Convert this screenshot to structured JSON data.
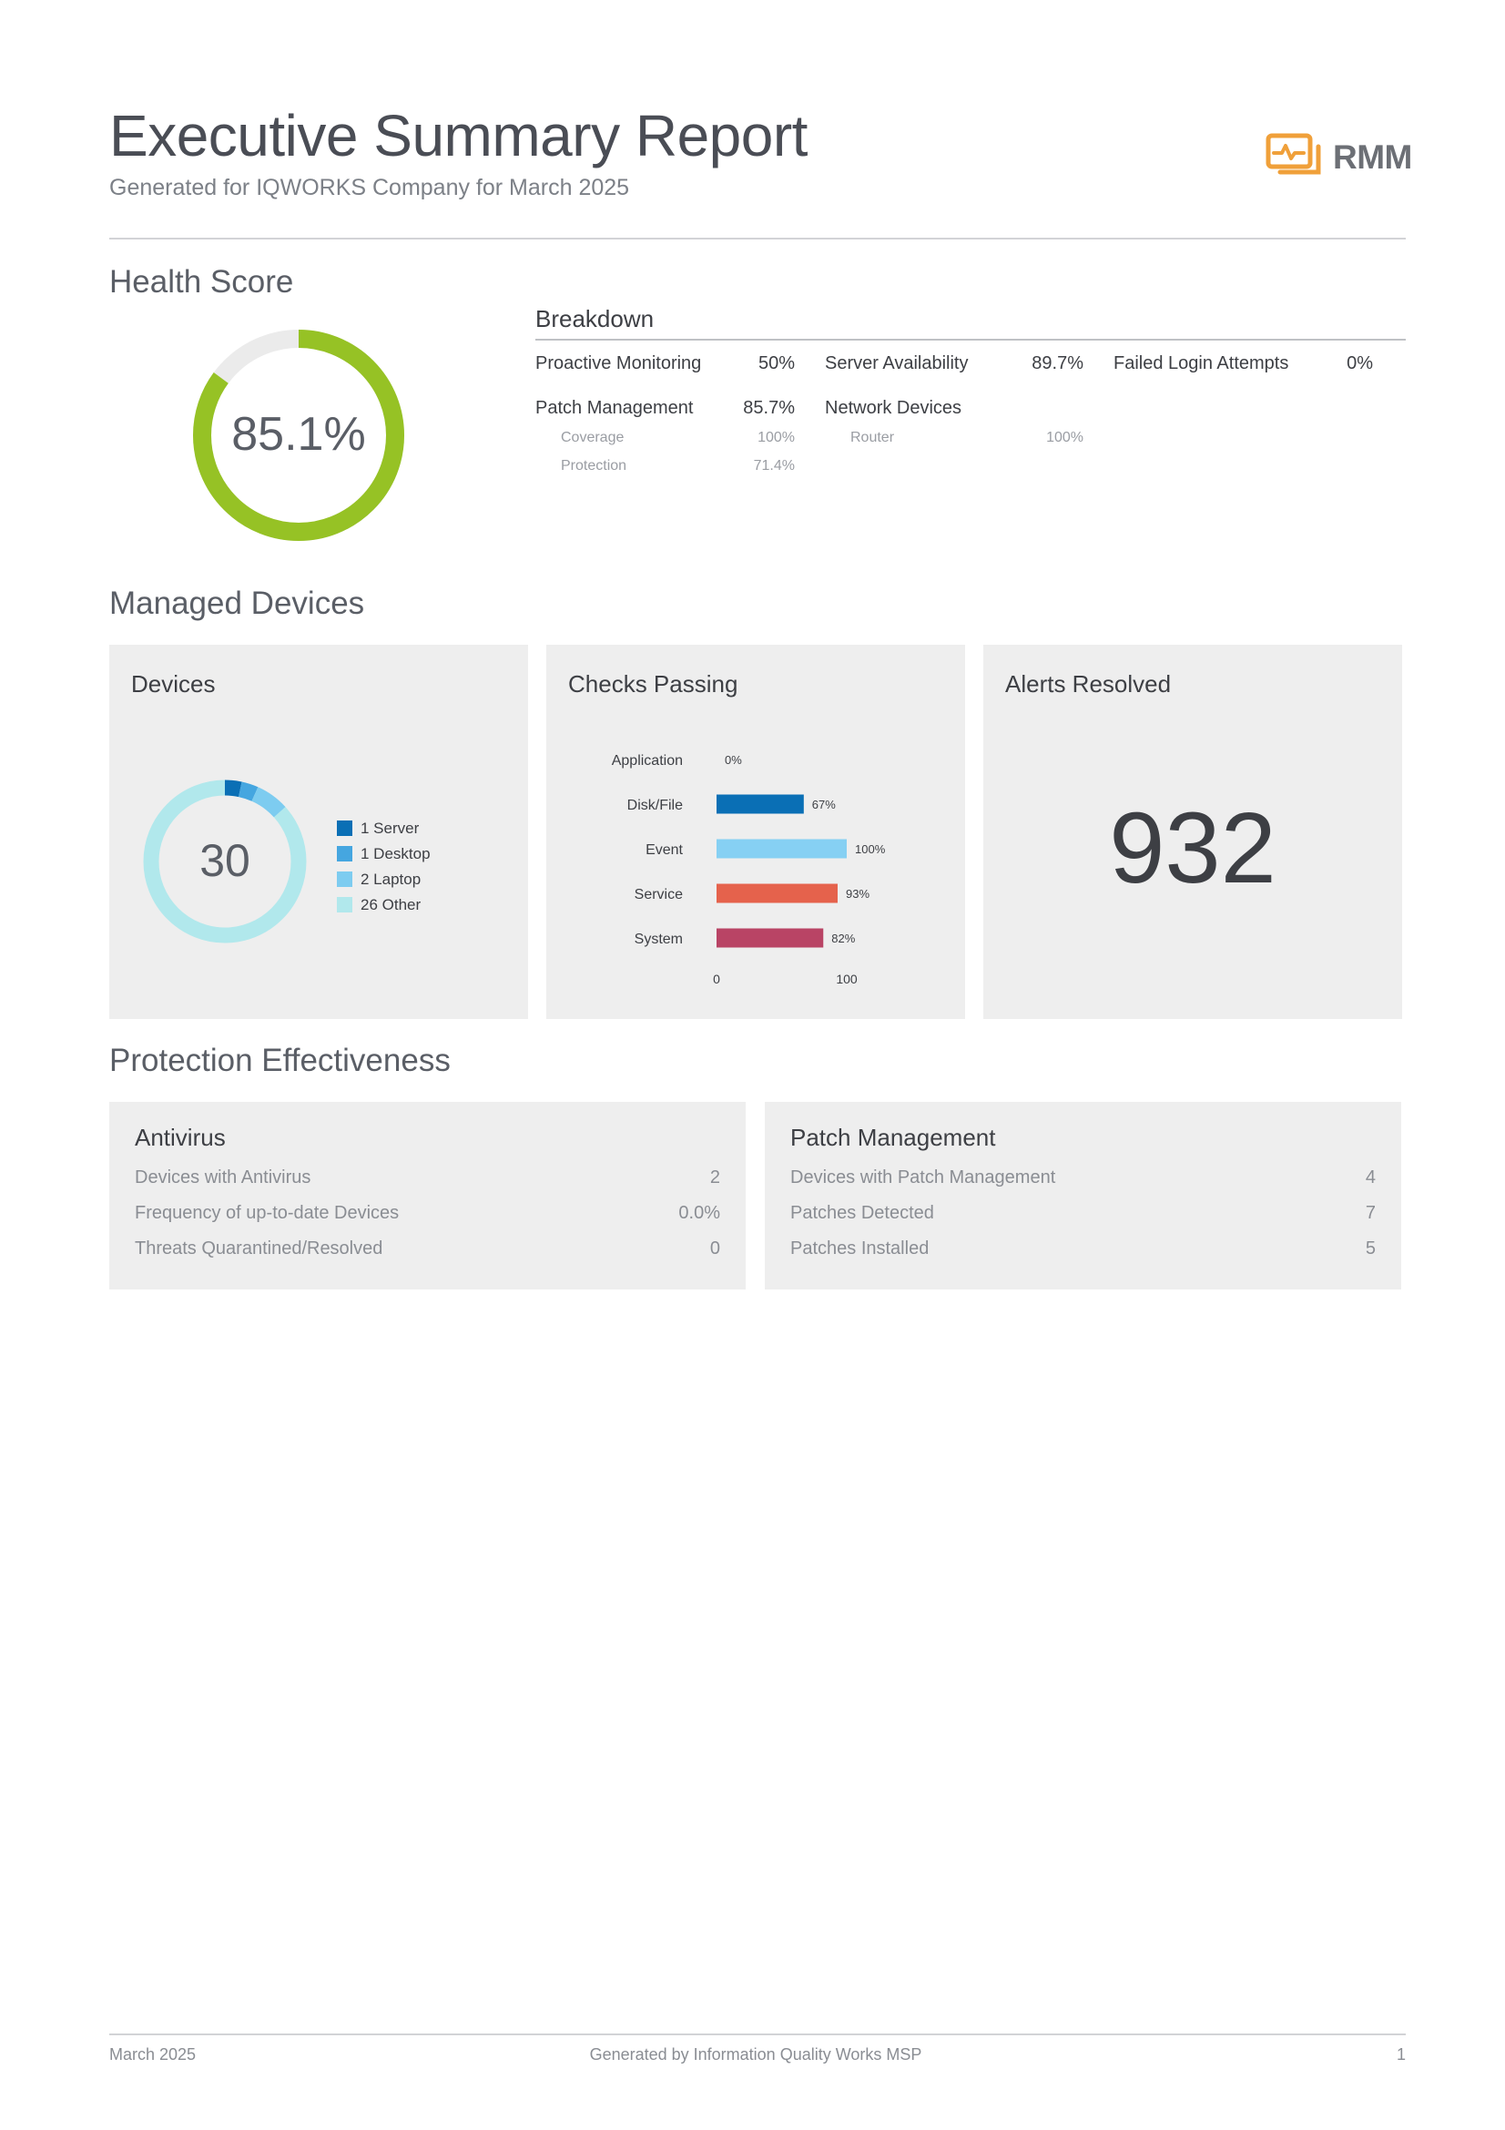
{
  "report": {
    "title": "Executive Summary Report",
    "subtitle": "Generated for IQWORKS Company for March 2025",
    "logo_text": "RMM",
    "accent_color": "#f0a03a"
  },
  "health": {
    "section_title": "Health Score",
    "score_label": "85.1%",
    "score_value": 85.1,
    "ring_color": "#96c225",
    "track_color": "#ebebeb"
  },
  "breakdown": {
    "title": "Breakdown",
    "proactive_monitoring": {
      "label": "Proactive Monitoring",
      "value": "50%"
    },
    "server_availability": {
      "label": "Server Availability",
      "value": "89.7%"
    },
    "failed_login_attempts": {
      "label": "Failed Login Attempts",
      "value": "0%"
    },
    "patch_management": {
      "label": "Patch Management",
      "value": "85.7%",
      "coverage": {
        "label": "Coverage",
        "value": "100%"
      },
      "protection": {
        "label": "Protection",
        "value": "71.4%"
      }
    },
    "network_devices": {
      "label": "Network Devices",
      "router": {
        "label": "Router",
        "value": "100%"
      }
    }
  },
  "managed_devices": {
    "section_title": "Managed Devices",
    "devices_card": {
      "title": "Devices",
      "total": "30",
      "legend": [
        {
          "label": "1 Server",
          "count": 1,
          "color": "#0a6fb5"
        },
        {
          "label": "1 Desktop",
          "count": 1,
          "color": "#45a6e0"
        },
        {
          "label": "2 Laptop",
          "count": 2,
          "color": "#7dccf0"
        },
        {
          "label": "26 Other",
          "count": 26,
          "color": "#b1e8ec"
        }
      ]
    },
    "checks_card": {
      "title": "Checks Passing"
    },
    "alerts_card": {
      "title": "Alerts Resolved",
      "value": "932"
    }
  },
  "chart_data": {
    "type": "bar",
    "orientation": "horizontal",
    "categories": [
      "Application",
      "Disk/File",
      "Event",
      "Service",
      "System"
    ],
    "values": [
      0,
      67,
      100,
      93,
      82
    ],
    "value_labels": [
      "0%",
      "67%",
      "100%",
      "93%",
      "82%"
    ],
    "colors": [
      "#0a6fb5",
      "#0a6fb5",
      "#86d0f3",
      "#e5624c",
      "#b94465"
    ],
    "xlim": [
      0,
      100
    ],
    "x_ticks": [
      "0",
      "100"
    ],
    "title": "Checks Passing",
    "grid": false
  },
  "protection": {
    "section_title": "Protection Effectiveness",
    "antivirus": {
      "title": "Antivirus",
      "rows": [
        {
          "label": "Devices with Antivirus",
          "value": "2"
        },
        {
          "label": "Frequency of up-to-date Devices",
          "value": "0.0%"
        },
        {
          "label": "Threats Quarantined/Resolved",
          "value": "0"
        }
      ]
    },
    "patch": {
      "title": "Patch Management",
      "rows": [
        {
          "label": "Devices with Patch Management",
          "value": "4"
        },
        {
          "label": "Patches Detected",
          "value": "7"
        },
        {
          "label": "Patches Installed",
          "value": "5"
        }
      ]
    }
  },
  "footer": {
    "date": "March 2025",
    "generated_by": "Generated by Information Quality Works MSP",
    "page_number": "1"
  }
}
